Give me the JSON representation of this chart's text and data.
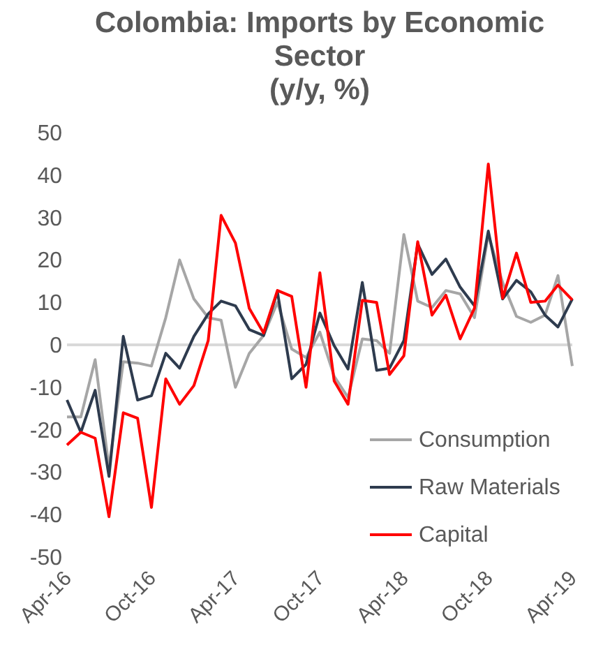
{
  "chart_data": {
    "type": "line",
    "title": "Colombia: Imports by Economic\nSector\n(y/y, %)",
    "x": [
      "2016-04",
      "2016-05",
      "2016-06",
      "2016-07",
      "2016-08",
      "2016-09",
      "2016-10",
      "2016-11",
      "2016-12",
      "2017-01",
      "2017-02",
      "2017-03",
      "2017-04",
      "2017-05",
      "2017-06",
      "2017-07",
      "2017-08",
      "2017-09",
      "2017-10",
      "2017-11",
      "2017-12",
      "2018-01",
      "2018-02",
      "2018-03",
      "2018-04",
      "2018-05",
      "2018-06",
      "2018-07",
      "2018-08",
      "2018-09",
      "2018-10",
      "2018-11",
      "2018-12",
      "2019-01",
      "2019-02",
      "2019-03",
      "2019-04"
    ],
    "series": [
      {
        "name": "Consumption",
        "color": "#a6a6a6",
        "values": [
          -17,
          -17,
          -3.5,
          -29,
          -4,
          -4.3,
          -5,
          6.4,
          20,
          10.8,
          6.4,
          5.8,
          -10,
          -2,
          2.2,
          10,
          -1,
          -3,
          3,
          -7.4,
          -12.4,
          1.4,
          1,
          -2,
          26,
          10.3,
          8.8,
          12.8,
          12,
          6.4,
          26,
          14.7,
          6.7,
          5.3,
          7,
          16.3,
          -5
        ]
      },
      {
        "name": "Raw Materials",
        "color": "#2e3b4e",
        "values": [
          -13,
          -20.6,
          -10.7,
          -31,
          2,
          -13,
          -12,
          -2,
          -5.5,
          2,
          7.3,
          10.3,
          9.2,
          3.6,
          2.2,
          12.5,
          -8,
          -4.6,
          7.5,
          -0.2,
          -5.7,
          14.7,
          -6,
          -5.5,
          1,
          23.8,
          16.6,
          20.2,
          13.6,
          9.2,
          26.8,
          10.8,
          15.2,
          12.5,
          7,
          4.2,
          10.8
        ]
      },
      {
        "name": "Capital",
        "color": "#ff0000",
        "values": [
          -23.6,
          -20.6,
          -22,
          -40.5,
          -16,
          -17.3,
          -38.3,
          -8,
          -14,
          -9.6,
          1,
          30.5,
          24,
          8.6,
          2.8,
          12.8,
          11.4,
          -10,
          17,
          -8.5,
          -14,
          10.5,
          10,
          -7,
          -2.6,
          24.3,
          7,
          11.7,
          1.4,
          8.6,
          42.6,
          11,
          21.6,
          10,
          10.3,
          14.1,
          10.6
        ]
      }
    ],
    "xlim": [
      "2016-04",
      "2019-04"
    ],
    "xticks": [
      {
        "value": "2016-04",
        "label": "Apr-16"
      },
      {
        "value": "2016-10",
        "label": "Oct-16"
      },
      {
        "value": "2017-04",
        "label": "Apr-17"
      },
      {
        "value": "2017-10",
        "label": "Oct-17"
      },
      {
        "value": "2018-04",
        "label": "Apr-18"
      },
      {
        "value": "2018-10",
        "label": "Oct-18"
      },
      {
        "value": "2019-04",
        "label": "Apr-19"
      }
    ],
    "ylim": [
      -50,
      50
    ],
    "yticks": [
      -50,
      -40,
      -30,
      -20,
      -10,
      0,
      10,
      20,
      30,
      40,
      50
    ],
    "ref_lines": [
      {
        "axis": "y",
        "value": 0,
        "color": "#d9d9d9"
      }
    ],
    "legend": "bottom right",
    "grid": false
  }
}
